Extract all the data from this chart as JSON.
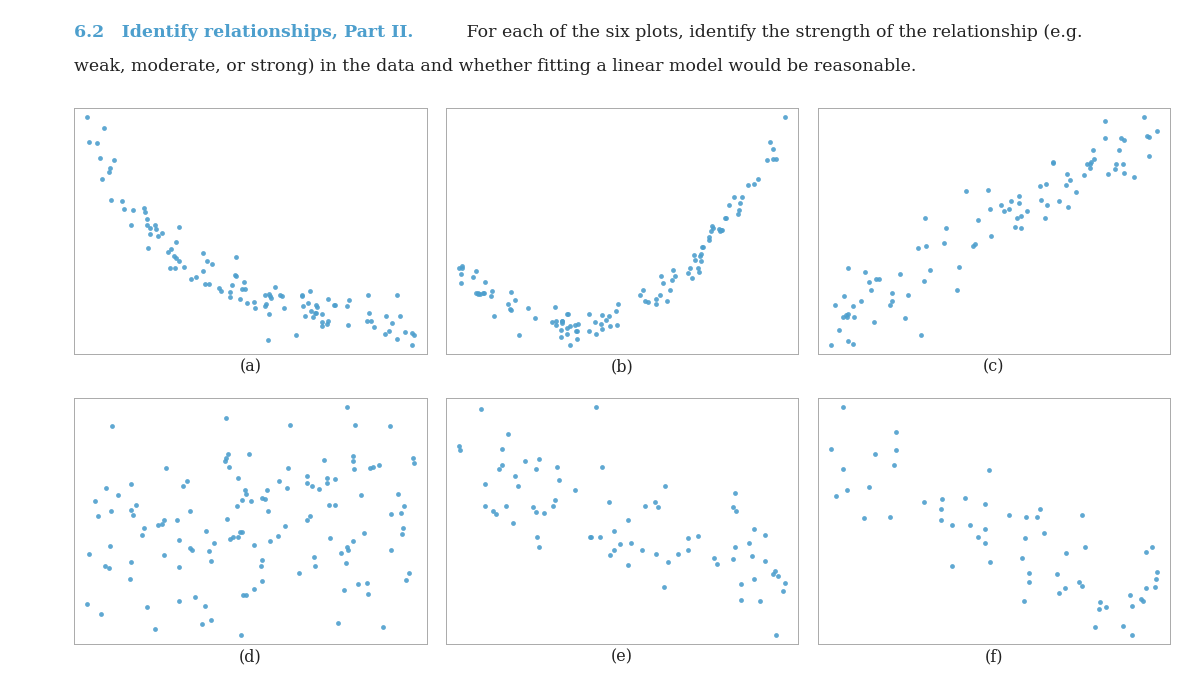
{
  "dot_color": "#4d9fcd",
  "dot_size": 12,
  "dot_alpha": 0.9,
  "title_color": "#4d9fcd",
  "text_color": "#222222",
  "labels": [
    "(a)",
    "(b)",
    "(c)",
    "(d)",
    "(e)",
    "(f)"
  ],
  "background": "#ffffff",
  "title_bold_text": "6.2  Identify relationships, Part II.",
  "title_rest1": " For each of the six plots, identify the strength of the relationship (e.g.",
  "title_rest2": "weak, moderate, or strong) in the data and whether fitting a linear model would be reasonable.",
  "n_a": 110,
  "n_b": 110,
  "n_c": 90,
  "n_d": 130,
  "n_e": 75,
  "n_f": 60
}
